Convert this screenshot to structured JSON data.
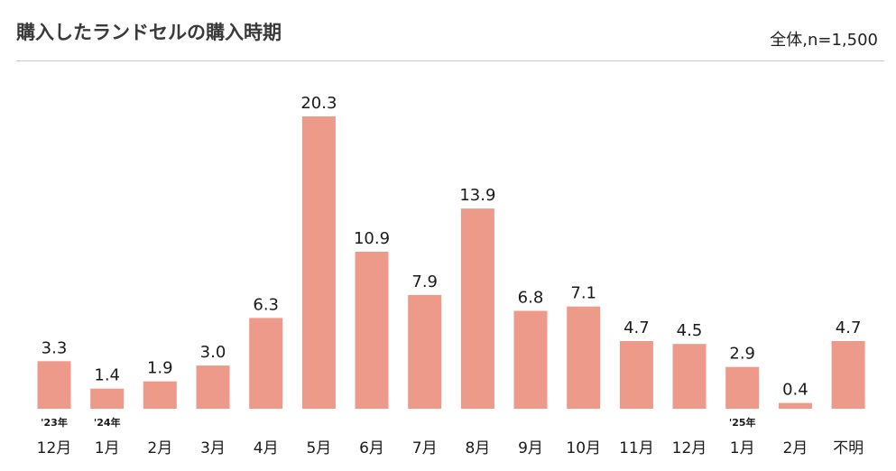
{
  "header": {
    "title": "購入したランドセルの購入時期",
    "subtitle": "全体,n=1,500"
  },
  "colors": {
    "bar": "#ed9a8a",
    "value_text": "#1a1a1a",
    "month_text": "#1a1a1a",
    "year_text": "#1a1a1a"
  },
  "chart_data": {
    "type": "bar",
    "title": "購入したランドセルの購入時期",
    "subtitle": "全体,n=1,500",
    "categories": [
      "12月",
      "1月",
      "2月",
      "3月",
      "4月",
      "5月",
      "6月",
      "7月",
      "8月",
      "9月",
      "10月",
      "11月",
      "12月",
      "1月",
      "2月",
      "不明"
    ],
    "year_markers": [
      {
        "index": 0,
        "label": "'23年"
      },
      {
        "index": 1,
        "label": "'24年"
      },
      {
        "index": 13,
        "label": "'25年"
      }
    ],
    "values": [
      3.3,
      1.4,
      1.9,
      3.0,
      6.3,
      20.3,
      10.9,
      7.9,
      13.9,
      6.8,
      7.1,
      4.7,
      4.5,
      2.9,
      0.4,
      4.7
    ],
    "value_labels": [
      "3.3",
      "1.4",
      "1.9",
      "3.0",
      "6.3",
      "20.3",
      "10.9",
      "7.9",
      "13.9",
      "6.8",
      "7.1",
      "4.7",
      "4.5",
      "2.9",
      "0.4",
      "4.7"
    ],
    "ylim": [
      0,
      20.3
    ],
    "grid": false,
    "legend": "none"
  }
}
